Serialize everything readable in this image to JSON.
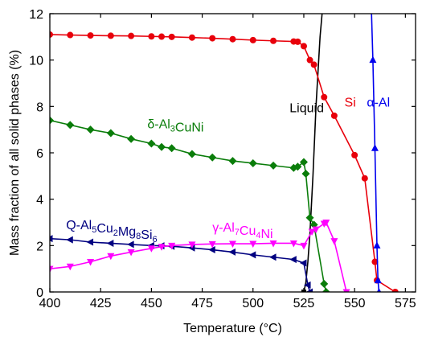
{
  "chart_data": {
    "type": "line",
    "title": "",
    "xlabel": "Temperature (°C)",
    "ylabel": "Mass fraction of all solid phases (%)",
    "xlim": [
      400,
      580
    ],
    "ylim": [
      0,
      12
    ],
    "xticks": [
      400,
      425,
      450,
      475,
      500,
      525,
      550,
      575
    ],
    "yticks": [
      0,
      2,
      4,
      6,
      8,
      10,
      12
    ],
    "grid": false,
    "legend": "none",
    "series": [
      {
        "name": "Liquid",
        "color": "#000000",
        "marker": "square",
        "label": {
          "text": "Liquid",
          "x": 518,
          "y": 7.75
        },
        "points": [
          [
            525,
            0
          ],
          [
            526,
            0.4
          ],
          [
            527,
            1.3
          ],
          [
            528,
            2.5
          ],
          [
            529.5,
            5
          ],
          [
            531,
            8
          ],
          [
            533,
            11
          ],
          [
            535,
            13
          ]
        ]
      },
      {
        "name": "Si",
        "color": "#e8000b",
        "marker": "circle",
        "label": {
          "text": "Si",
          "x": 545,
          "y": 8.0
        },
        "points": [
          [
            400,
            11.1
          ],
          [
            410,
            11.08
          ],
          [
            420,
            11.06
          ],
          [
            430,
            11.05
          ],
          [
            440,
            11.04
          ],
          [
            450,
            11.02
          ],
          [
            455,
            11.01
          ],
          [
            460,
            11.0
          ],
          [
            470,
            10.97
          ],
          [
            480,
            10.94
          ],
          [
            490,
            10.9
          ],
          [
            500,
            10.86
          ],
          [
            510,
            10.83
          ],
          [
            520,
            10.8
          ],
          [
            522,
            10.79
          ],
          [
            525,
            10.6
          ],
          [
            528,
            10.0
          ],
          [
            530,
            9.8
          ],
          [
            535,
            8.4
          ],
          [
            540,
            7.6
          ],
          [
            550,
            5.9
          ],
          [
            555,
            4.9
          ],
          [
            560,
            1.3
          ],
          [
            561,
            0.5
          ],
          [
            570,
            0
          ]
        ]
      },
      {
        "name": "α-Al",
        "color": "#0000ee",
        "marker": "triangle-up",
        "label": {
          "text": "α-Al",
          "x": 556,
          "y": 8.0
        },
        "points": [
          [
            558,
            13
          ],
          [
            559,
            10
          ],
          [
            560,
            6.2
          ],
          [
            561,
            2
          ],
          [
            561.5,
            0.5
          ],
          [
            562,
            0
          ]
        ]
      },
      {
        "name": "δ-Al3CuNi",
        "color": "#0a7d0a",
        "marker": "diamond",
        "label": {
          "text": "δ-Al3CuNi",
          "x": 448,
          "y": 7.05
        },
        "points": [
          [
            400,
            7.4
          ],
          [
            410,
            7.2
          ],
          [
            420,
            7.0
          ],
          [
            430,
            6.85
          ],
          [
            440,
            6.6
          ],
          [
            450,
            6.4
          ],
          [
            455,
            6.25
          ],
          [
            460,
            6.2
          ],
          [
            470,
            5.95
          ],
          [
            480,
            5.8
          ],
          [
            490,
            5.65
          ],
          [
            500,
            5.55
          ],
          [
            510,
            5.45
          ],
          [
            520,
            5.35
          ],
          [
            522,
            5.4
          ],
          [
            525,
            5.6
          ],
          [
            526,
            5.1
          ],
          [
            528,
            3.2
          ],
          [
            530,
            2.9
          ],
          [
            535,
            0.35
          ],
          [
            536,
            0
          ]
        ]
      },
      {
        "name": "Q-Al5Cu2Mg8Si6",
        "color": "#000080",
        "marker": "triangle-left",
        "label": {
          "text": "Q-Al5Cu2Mg8Si6",
          "x": 408,
          "y": 2.7
        },
        "points": [
          [
            400,
            2.3
          ],
          [
            410,
            2.25
          ],
          [
            420,
            2.15
          ],
          [
            430,
            2.1
          ],
          [
            440,
            2.05
          ],
          [
            450,
            2.0
          ],
          [
            455,
            1.99
          ],
          [
            460,
            1.97
          ],
          [
            470,
            1.9
          ],
          [
            480,
            1.82
          ],
          [
            490,
            1.72
          ],
          [
            500,
            1.6
          ],
          [
            510,
            1.5
          ],
          [
            520,
            1.4
          ],
          [
            525,
            1.25
          ],
          [
            527,
            0.3
          ],
          [
            528,
            0
          ]
        ]
      },
      {
        "name": "γ-Al7Cu4Ni",
        "color": "#ff00ff",
        "marker": "triangle-down",
        "label": {
          "text": "γ-Al7Cu4Ni",
          "x": 480,
          "y": 2.6
        },
        "points": [
          [
            400,
            1.0
          ],
          [
            410,
            1.1
          ],
          [
            420,
            1.3
          ],
          [
            430,
            1.55
          ],
          [
            440,
            1.72
          ],
          [
            450,
            1.88
          ],
          [
            455,
            1.95
          ],
          [
            460,
            2.0
          ],
          [
            470,
            2.05
          ],
          [
            480,
            2.07
          ],
          [
            490,
            2.08
          ],
          [
            500,
            2.08
          ],
          [
            510,
            2.1
          ],
          [
            520,
            2.1
          ],
          [
            525,
            2.0
          ],
          [
            529,
            2.6
          ],
          [
            531,
            2.7
          ],
          [
            535,
            2.95
          ],
          [
            536,
            3.0
          ],
          [
            540,
            2.2
          ],
          [
            546,
            0
          ]
        ]
      }
    ]
  }
}
